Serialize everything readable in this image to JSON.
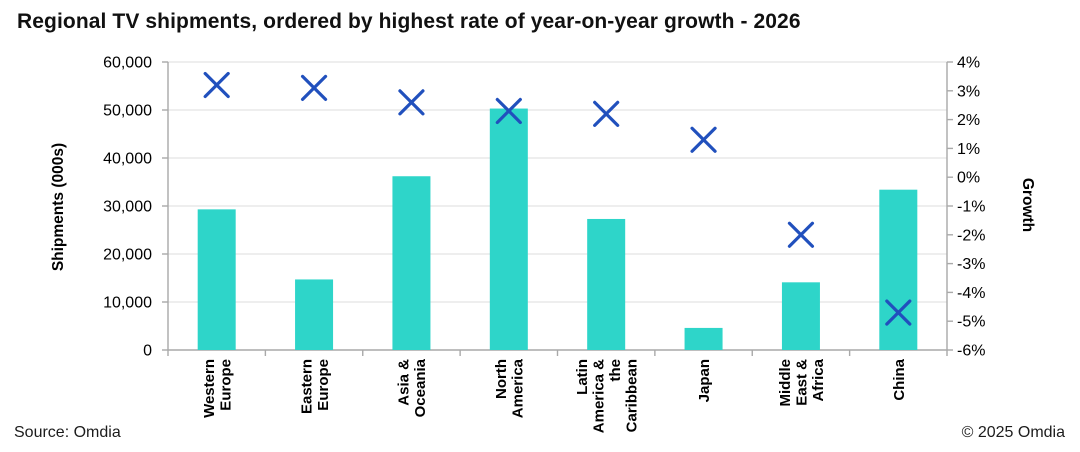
{
  "title": "Regional TV shipments, ordered by highest rate of year-on-year growth - 2026",
  "footer": {
    "source": "Source: Omdia",
    "copyright": "© 2025 Omdia"
  },
  "colors": {
    "bar": "#2ed5c9",
    "marker": "#2150bd",
    "gridline": "#e3e3e3",
    "axis_line": "#a9a9a9",
    "text": "#000000"
  },
  "chart_data": {
    "type": "combo (bar + scatter-x markers)",
    "title": "Regional TV shipments, ordered by highest rate of year-on-year growth - 2026",
    "categories": [
      "Western Europe",
      "Eastern Europe",
      "Asia & Oceania",
      "North America",
      "Latin America & the Caribbean",
      "Japan",
      "Middle East & Africa",
      "China"
    ],
    "category_label_lines": [
      [
        "Western",
        "Europe"
      ],
      [
        "Eastern",
        "Europe"
      ],
      [
        "Asia &",
        "Oceania"
      ],
      [
        "North",
        "America"
      ],
      [
        "Latin",
        "America &",
        "the",
        "Caribbean"
      ],
      [
        "Japan"
      ],
      [
        "Middle",
        "East &",
        "Africa"
      ],
      [
        "China"
      ]
    ],
    "series": [
      {
        "name": "Shipments (000s)",
        "type": "bar",
        "axis": "left",
        "values": [
          29300,
          14700,
          36200,
          50300,
          27300,
          4600,
          14100,
          33400
        ]
      },
      {
        "name": "Growth",
        "type": "scatter",
        "marker": "x",
        "axis": "right",
        "values": [
          3.2,
          3.1,
          2.6,
          2.3,
          2.2,
          1.3,
          -2.0,
          -4.7
        ]
      }
    ],
    "left_axis": {
      "label": "Shipments (000s)",
      "min": 0,
      "max": 60000,
      "step": 10000,
      "tick_labels": [
        "0",
        "10,000",
        "20,000",
        "30,000",
        "40,000",
        "50,000",
        "60,000"
      ]
    },
    "right_axis": {
      "label": "Growth",
      "min": -6,
      "max": 4,
      "step": 1,
      "tick_labels": [
        "-6%",
        "-5%",
        "-4%",
        "-3%",
        "-2%",
        "-1%",
        "0%",
        "1%",
        "2%",
        "3%",
        "4%"
      ]
    },
    "grid": "horizontal only",
    "legend": "none"
  }
}
